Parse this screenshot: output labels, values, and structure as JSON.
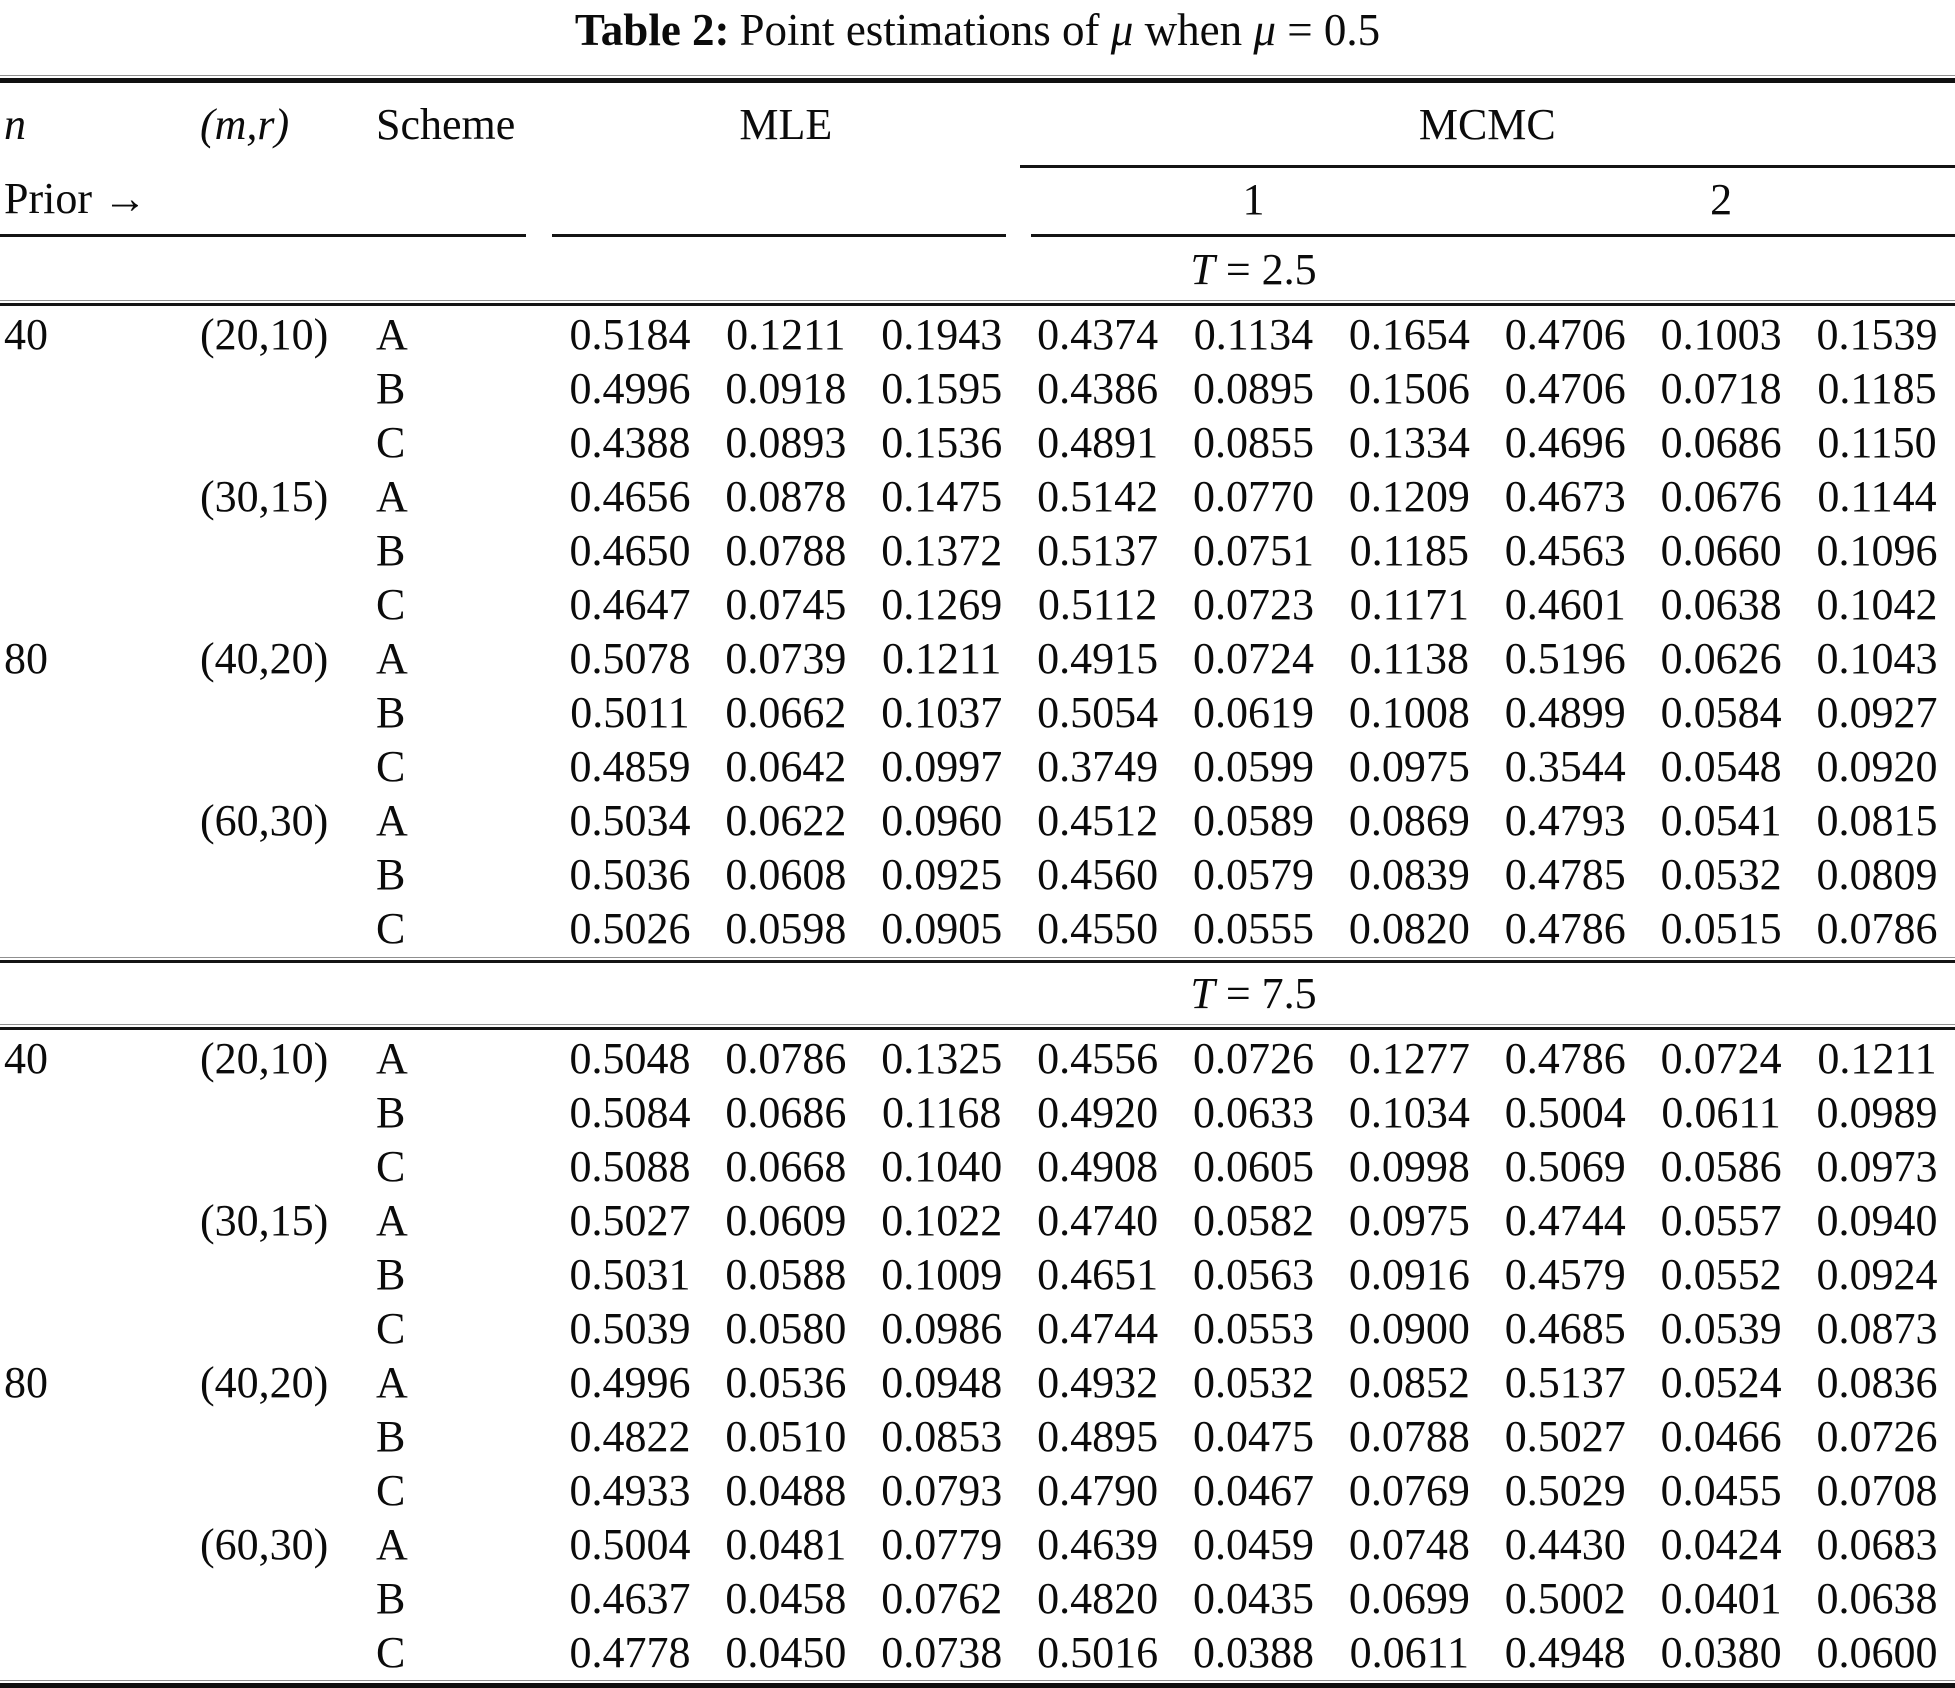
{
  "caption": {
    "label": "Table 2:",
    "before_mu": "Point estimations of",
    "mu": "μ",
    "mid": "when",
    "eq": "= 0.5"
  },
  "columns": {
    "n": "n",
    "mr": "(m,r)",
    "scheme": "Scheme",
    "mle": "MLE",
    "mcmc": "MCMC",
    "prior": "Prior →",
    "prior1": "1",
    "prior2": "2"
  },
  "sections": [
    {
      "t_var": "T",
      "t_eq": "= 2.5",
      "rows": [
        {
          "n": "40",
          "mr": "(20,10)",
          "scheme": "A",
          "values": [
            "0.5184",
            "0.1211",
            "0.1943",
            "0.4374",
            "0.1134",
            "0.1654",
            "0.4706",
            "0.1003",
            "0.1539"
          ]
        },
        {
          "n": "",
          "mr": "",
          "scheme": "B",
          "values": [
            "0.4996",
            "0.0918",
            "0.1595",
            "0.4386",
            "0.0895",
            "0.1506",
            "0.4706",
            "0.0718",
            "0.1185"
          ]
        },
        {
          "n": "",
          "mr": "",
          "scheme": "C",
          "values": [
            "0.4388",
            "0.0893",
            "0.1536",
            "0.4891",
            "0.0855",
            "0.1334",
            "0.4696",
            "0.0686",
            "0.1150"
          ]
        },
        {
          "n": "",
          "mr": "(30,15)",
          "scheme": "A",
          "values": [
            "0.4656",
            "0.0878",
            "0.1475",
            "0.5142",
            "0.0770",
            "0.1209",
            "0.4673",
            "0.0676",
            "0.1144"
          ]
        },
        {
          "n": "",
          "mr": "",
          "scheme": "B",
          "values": [
            "0.4650",
            "0.0788",
            "0.1372",
            "0.5137",
            "0.0751",
            "0.1185",
            "0.4563",
            "0.0660",
            "0.1096"
          ]
        },
        {
          "n": "",
          "mr": "",
          "scheme": "C",
          "values": [
            "0.4647",
            "0.0745",
            "0.1269",
            "0.5112",
            "0.0723",
            "0.1171",
            "0.4601",
            "0.0638",
            "0.1042"
          ]
        },
        {
          "n": "80",
          "mr": "(40,20)",
          "scheme": "A",
          "values": [
            "0.5078",
            "0.0739",
            "0.1211",
            "0.4915",
            "0.0724",
            "0.1138",
            "0.5196",
            "0.0626",
            "0.1043"
          ]
        },
        {
          "n": "",
          "mr": "",
          "scheme": "B",
          "values": [
            "0.5011",
            "0.0662",
            "0.1037",
            "0.5054",
            "0.0619",
            "0.1008",
            "0.4899",
            "0.0584",
            "0.0927"
          ]
        },
        {
          "n": "",
          "mr": "",
          "scheme": "C",
          "values": [
            "0.4859",
            "0.0642",
            "0.0997",
            "0.3749",
            "0.0599",
            "0.0975",
            "0.3544",
            "0.0548",
            "0.0920"
          ]
        },
        {
          "n": "",
          "mr": "(60,30)",
          "scheme": "A",
          "values": [
            "0.5034",
            "0.0622",
            "0.0960",
            "0.4512",
            "0.0589",
            "0.0869",
            "0.4793",
            "0.0541",
            "0.0815"
          ]
        },
        {
          "n": "",
          "mr": "",
          "scheme": "B",
          "values": [
            "0.5036",
            "0.0608",
            "0.0925",
            "0.4560",
            "0.0579",
            "0.0839",
            "0.4785",
            "0.0532",
            "0.0809"
          ]
        },
        {
          "n": "",
          "mr": "",
          "scheme": "C",
          "values": [
            "0.5026",
            "0.0598",
            "0.0905",
            "0.4550",
            "0.0555",
            "0.0820",
            "0.4786",
            "0.0515",
            "0.0786"
          ]
        }
      ]
    },
    {
      "t_var": "T",
      "t_eq": "= 7.5",
      "rows": [
        {
          "n": "40",
          "mr": "(20,10)",
          "scheme": "A",
          "values": [
            "0.5048",
            "0.0786",
            "0.1325",
            "0.4556",
            "0.0726",
            "0.1277",
            "0.4786",
            "0.0724",
            "0.1211"
          ]
        },
        {
          "n": "",
          "mr": "",
          "scheme": "B",
          "values": [
            "0.5084",
            "0.0686",
            "0.1168",
            "0.4920",
            "0.0633",
            "0.1034",
            "0.5004",
            "0.0611",
            "0.0989"
          ]
        },
        {
          "n": "",
          "mr": "",
          "scheme": "C",
          "values": [
            "0.5088",
            "0.0668",
            "0.1040",
            "0.4908",
            "0.0605",
            "0.0998",
            "0.5069",
            "0.0586",
            "0.0973"
          ]
        },
        {
          "n": "",
          "mr": "(30,15)",
          "scheme": "A",
          "values": [
            "0.5027",
            "0.0609",
            "0.1022",
            "0.4740",
            "0.0582",
            "0.0975",
            "0.4744",
            "0.0557",
            "0.0940"
          ]
        },
        {
          "n": "",
          "mr": "",
          "scheme": "B",
          "values": [
            "0.5031",
            "0.0588",
            "0.1009",
            "0.4651",
            "0.0563",
            "0.0916",
            "0.4579",
            "0.0552",
            "0.0924"
          ]
        },
        {
          "n": "",
          "mr": "",
          "scheme": "C",
          "values": [
            "0.5039",
            "0.0580",
            "0.0986",
            "0.4744",
            "0.0553",
            "0.0900",
            "0.4685",
            "0.0539",
            "0.0873"
          ]
        },
        {
          "n": "80",
          "mr": "(40,20)",
          "scheme": "A",
          "values": [
            "0.4996",
            "0.0536",
            "0.0948",
            "0.4932",
            "0.0532",
            "0.0852",
            "0.5137",
            "0.0524",
            "0.0836"
          ]
        },
        {
          "n": "",
          "mr": "",
          "scheme": "B",
          "values": [
            "0.4822",
            "0.0510",
            "0.0853",
            "0.4895",
            "0.0475",
            "0.0788",
            "0.5027",
            "0.0466",
            "0.0726"
          ]
        },
        {
          "n": "",
          "mr": "",
          "scheme": "C",
          "values": [
            "0.4933",
            "0.0488",
            "0.0793",
            "0.4790",
            "0.0467",
            "0.0769",
            "0.5029",
            "0.0455",
            "0.0708"
          ]
        },
        {
          "n": "",
          "mr": "(60,30)",
          "scheme": "A",
          "values": [
            "0.5004",
            "0.0481",
            "0.0779",
            "0.4639",
            "0.0459",
            "0.0748",
            "0.4430",
            "0.0424",
            "0.0683"
          ]
        },
        {
          "n": "",
          "mr": "",
          "scheme": "B",
          "values": [
            "0.4637",
            "0.0458",
            "0.0762",
            "0.4820",
            "0.0435",
            "0.0699",
            "0.5002",
            "0.0401",
            "0.0638"
          ]
        },
        {
          "n": "",
          "mr": "",
          "scheme": "C",
          "values": [
            "0.4778",
            "0.0450",
            "0.0738",
            "0.5016",
            "0.0388",
            "0.0611",
            "0.4948",
            "0.0380",
            "0.0600"
          ]
        }
      ]
    }
  ]
}
